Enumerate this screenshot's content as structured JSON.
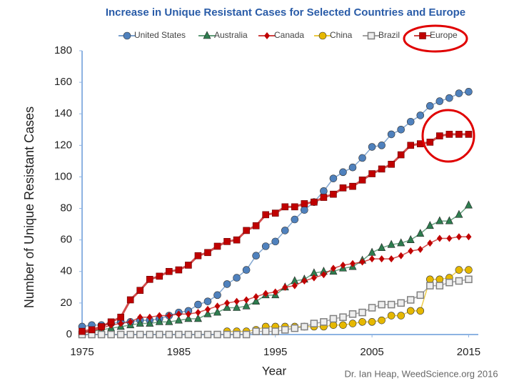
{
  "chart_data": {
    "type": "line",
    "title": "Increase in Unique Resistant Cases for Selected Countries and Europe",
    "x_label": "Year",
    "y_label": "Number of Unique Resistant Cases",
    "credit": "Dr. Ian Heap, WeedScience.org 2016",
    "x": [
      1975,
      1976,
      1977,
      1978,
      1979,
      1980,
      1981,
      1982,
      1983,
      1984,
      1985,
      1986,
      1987,
      1988,
      1989,
      1990,
      1991,
      1992,
      1993,
      1994,
      1995,
      1996,
      1997,
      1998,
      1999,
      2000,
      2001,
      2002,
      2003,
      2004,
      2005,
      2006,
      2007,
      2008,
      2009,
      2010,
      2011,
      2012,
      2013,
      2014,
      2015
    ],
    "xlim": [
      1975,
      2016
    ],
    "xticks": [
      1975,
      1985,
      1995,
      2005,
      2015
    ],
    "ylim": [
      0,
      180
    ],
    "yticks": [
      0,
      20,
      40,
      60,
      80,
      100,
      120,
      140,
      160,
      180
    ],
    "series": [
      {
        "name": "United States",
        "color": "#4f81bd",
        "marker": "circle",
        "values": [
          5,
          6,
          6,
          7,
          8,
          8,
          9,
          9,
          10,
          12,
          14,
          15,
          19,
          21,
          25,
          32,
          36,
          41,
          50,
          56,
          59,
          66,
          73,
          79,
          84,
          91,
          99,
          103,
          106,
          112,
          119,
          120,
          127,
          130,
          135,
          139,
          145,
          148,
          150,
          153,
          154
        ]
      },
      {
        "name": "Australia",
        "color": "#2e7d4f",
        "marker": "triangle",
        "values": [
          1,
          2,
          3,
          4,
          5,
          6,
          7,
          7,
          8,
          8,
          9,
          10,
          10,
          13,
          14,
          17,
          17,
          18,
          21,
          25,
          25,
          30,
          34,
          35,
          39,
          40,
          40,
          42,
          43,
          47,
          52,
          55,
          57,
          58,
          60,
          64,
          69,
          72,
          72,
          76,
          82
        ]
      },
      {
        "name": "Canada",
        "color": "#c00000",
        "marker": "diamond",
        "values": [
          1,
          2,
          4,
          6,
          7,
          8,
          11,
          11,
          12,
          12,
          13,
          13,
          14,
          16,
          18,
          20,
          21,
          22,
          24,
          26,
          27,
          30,
          31,
          34,
          36,
          38,
          42,
          44,
          45,
          46,
          48,
          48,
          48,
          50,
          53,
          54,
          58,
          61,
          61,
          62,
          62
        ]
      },
      {
        "name": "China",
        "color": "#e6b800",
        "marker": "circle",
        "values": [
          null,
          null,
          null,
          null,
          null,
          null,
          null,
          null,
          null,
          null,
          null,
          null,
          null,
          null,
          null,
          2,
          2,
          2,
          3,
          5,
          5,
          5,
          5,
          5,
          5,
          5,
          6,
          6,
          7,
          8,
          8,
          9,
          12,
          12,
          15,
          15,
          35,
          35,
          36,
          41,
          41
        ]
      },
      {
        "name": "Brazil",
        "color": "#808080",
        "marker": "hollow-square",
        "values": [
          0,
          0,
          0,
          0,
          0,
          0,
          0,
          0,
          0,
          0,
          0,
          0,
          0,
          0,
          0,
          0,
          0,
          0,
          2,
          2,
          2,
          3,
          4,
          5,
          7,
          8,
          10,
          11,
          13,
          14,
          17,
          19,
          19,
          20,
          22,
          25,
          31,
          31,
          33,
          34,
          35
        ]
      },
      {
        "name": "Europe",
        "color": "#c00000",
        "marker": "square",
        "values": [
          2,
          3,
          5,
          8,
          11,
          22,
          28,
          35,
          37,
          40,
          41,
          44,
          50,
          52,
          56,
          59,
          60,
          66,
          69,
          76,
          77,
          81,
          81,
          83,
          84,
          87,
          89,
          93,
          94,
          98,
          102,
          105,
          108,
          114,
          120,
          121,
          122,
          126,
          127,
          127,
          127
        ]
      }
    ]
  }
}
